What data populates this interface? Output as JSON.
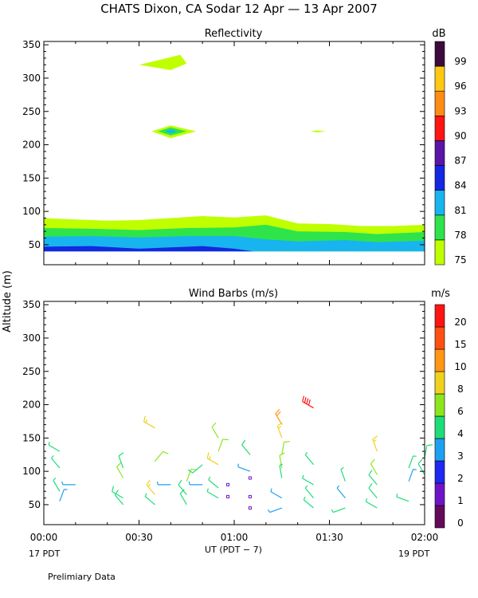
{
  "title": "CHATS Dixon, CA   Sodar   12 Apr — 13 Apr 2007",
  "ylabel": "Altitude  (m)",
  "xlabel": "UT  (PDT − 7)",
  "footer_left_date": "17 PDT",
  "footer_right_date": "19 PDT",
  "footnote": "Prelimiary Data",
  "x_ticks": [
    "00:00",
    "00:30",
    "01:00",
    "01:30",
    "02:00"
  ],
  "y_ticks": [
    "50",
    "100",
    "150",
    "200",
    "250",
    "300",
    "350"
  ],
  "chart_data": [
    {
      "type": "heatmap",
      "title": "Reflectivity",
      "colorbar_unit": "dB",
      "xlim_minutes": [
        0,
        120
      ],
      "ylim": [
        20,
        355
      ],
      "levels": [
        {
          "label": "75",
          "color": "#bfff00"
        },
        {
          "label": "78",
          "color": "#2ee44a"
        },
        {
          "label": "81",
          "color": "#18b4f0"
        },
        {
          "label": "84",
          "color": "#1428e0"
        },
        {
          "label": "87",
          "color": "#5a14a8"
        },
        {
          "label": "90",
          "color": "#ff1414"
        },
        {
          "label": "93",
          "color": "#ff8c14"
        },
        {
          "label": "96",
          "color": "#ffc814"
        },
        {
          "label": "99",
          "color": "#3c0a3c"
        }
      ],
      "contours": [
        {
          "level": "75",
          "points": [
            [
              0,
              40
            ],
            [
              0,
              90
            ],
            [
              10,
              88
            ],
            [
              20,
              86
            ],
            [
              30,
              87
            ],
            [
              40,
              90
            ],
            [
              50,
              93
            ],
            [
              60,
              91
            ],
            [
              70,
              94
            ],
            [
              80,
              82
            ],
            [
              90,
              81
            ],
            [
              100,
              78
            ],
            [
              110,
              78
            ],
            [
              120,
              80
            ],
            [
              120,
              40
            ]
          ]
        },
        {
          "level": "78",
          "points": [
            [
              0,
              40
            ],
            [
              0,
              75
            ],
            [
              15,
              74
            ],
            [
              30,
              72
            ],
            [
              45,
              75
            ],
            [
              60,
              76
            ],
            [
              70,
              80
            ],
            [
              80,
              70
            ],
            [
              95,
              69
            ],
            [
              105,
              66
            ],
            [
              120,
              69
            ],
            [
              120,
              40
            ]
          ]
        },
        {
          "level": "81",
          "points": [
            [
              0,
              40
            ],
            [
              0,
              62
            ],
            [
              15,
              63
            ],
            [
              30,
              61
            ],
            [
              45,
              63
            ],
            [
              60,
              63
            ],
            [
              70,
              58
            ],
            [
              80,
              55
            ],
            [
              95,
              57
            ],
            [
              105,
              54
            ],
            [
              120,
              56
            ],
            [
              120,
              40
            ]
          ]
        },
        {
          "level": "84",
          "points": [
            [
              0,
              40
            ],
            [
              0,
              47
            ],
            [
              15,
              48
            ],
            [
              30,
              44
            ],
            [
              40,
              46
            ],
            [
              50,
              48
            ],
            [
              60,
              44
            ],
            [
              66,
              40
            ]
          ]
        },
        {
          "level": "75",
          "points": [
            [
              30,
              320
            ],
            [
              37,
              328
            ],
            [
              43,
              335
            ],
            [
              45,
              322
            ],
            [
              40,
              312
            ]
          ]
        },
        {
          "level": "75",
          "points": [
            [
              34,
              220
            ],
            [
              40,
              229
            ],
            [
              48,
              220
            ],
            [
              40,
              210
            ]
          ]
        },
        {
          "level": "78",
          "points": [
            [
              36,
              220
            ],
            [
              40,
              226
            ],
            [
              45,
              220
            ],
            [
              40,
              214
            ]
          ]
        },
        {
          "level": "81",
          "points": [
            [
              38,
              220
            ],
            [
              40,
              223
            ],
            [
              42,
              220
            ],
            [
              40,
              217
            ]
          ]
        },
        {
          "level": "75",
          "points": [
            [
              84,
              220
            ],
            [
              86,
              221.5
            ],
            [
              89,
              220
            ],
            [
              86,
              218.5
            ]
          ]
        }
      ]
    },
    {
      "type": "scatter",
      "title": "Wind Barbs (m/s)",
      "colorbar_unit": "m/s",
      "xlim_minutes": [
        0,
        120
      ],
      "ylim": [
        20,
        355
      ],
      "levels": [
        {
          "label": "0",
          "color": "#640a5a"
        },
        {
          "label": "1",
          "color": "#6e14c8"
        },
        {
          "label": "2",
          "color": "#1e28f0"
        },
        {
          "label": "3",
          "color": "#1ea0f0"
        },
        {
          "label": "4",
          "color": "#1edc78"
        },
        {
          "label": "6",
          "color": "#8ce61e"
        },
        {
          "label": "8",
          "color": "#f0d21e"
        },
        {
          "label": "10",
          "color": "#ff9614"
        },
        {
          "label": "15",
          "color": "#ff5014"
        },
        {
          "label": "20",
          "color": "#ff1414"
        }
      ],
      "barbs": [
        {
          "t": 5,
          "z": 130,
          "speed": 4,
          "dir": 300
        },
        {
          "t": 5,
          "z": 105,
          "speed": 4,
          "dir": 320
        },
        {
          "t": 5,
          "z": 70,
          "speed": 4,
          "dir": 330
        },
        {
          "t": 5,
          "z": 55,
          "speed": 3,
          "dir": 20
        },
        {
          "t": 10,
          "z": 80,
          "speed": 3,
          "dir": 270
        },
        {
          "t": 25,
          "z": 105,
          "speed": 5,
          "dir": 340
        },
        {
          "t": 25,
          "z": 90,
          "speed": 7,
          "dir": 330
        },
        {
          "t": 25,
          "z": 60,
          "speed": 5,
          "dir": 300
        },
        {
          "t": 25,
          "z": 50,
          "speed": 5,
          "dir": 320
        },
        {
          "t": 35,
          "z": 165,
          "speed": 9,
          "dir": 300
        },
        {
          "t": 35,
          "z": 115,
          "speed": 6,
          "dir": 40
        },
        {
          "t": 35,
          "z": 65,
          "speed": 8,
          "dir": 320
        },
        {
          "t": 35,
          "z": 50,
          "speed": 4,
          "dir": 310
        },
        {
          "t": 40,
          "z": 80,
          "speed": 3,
          "dir": 270
        },
        {
          "t": 45,
          "z": 85,
          "speed": 6,
          "dir": 20
        },
        {
          "t": 45,
          "z": 65,
          "speed": 5,
          "dir": 320
        },
        {
          "t": 45,
          "z": 50,
          "speed": 5,
          "dir": 330
        },
        {
          "t": 50,
          "z": 110,
          "speed": 5,
          "dir": 230
        },
        {
          "t": 50,
          "z": 80,
          "speed": 3,
          "dir": 270
        },
        {
          "t": 55,
          "z": 150,
          "speed": 6,
          "dir": 330
        },
        {
          "t": 55,
          "z": 130,
          "speed": 6,
          "dir": 20
        },
        {
          "t": 55,
          "z": 110,
          "speed": 8,
          "dir": 300
        },
        {
          "t": 55,
          "z": 75,
          "speed": 4,
          "dir": 310
        },
        {
          "t": 55,
          "z": 60,
          "speed": 4,
          "dir": 300
        },
        {
          "t": 58,
          "z": 80,
          "speed": 1,
          "dir": 0
        },
        {
          "t": 58,
          "z": 62,
          "speed": 1,
          "dir": 0
        },
        {
          "t": 65,
          "z": 125,
          "speed": 5,
          "dir": 320
        },
        {
          "t": 65,
          "z": 100,
          "speed": 3,
          "dir": 290
        },
        {
          "t": 65,
          "z": 90,
          "speed": 1,
          "dir": 200
        },
        {
          "t": 65,
          "z": 62,
          "speed": 1,
          "dir": 0
        },
        {
          "t": 65,
          "z": 45,
          "speed": 1,
          "dir": 0
        },
        {
          "t": 75,
          "z": 170,
          "speed": 12,
          "dir": 330
        },
        {
          "t": 75,
          "z": 150,
          "speed": 8,
          "dir": 340
        },
        {
          "t": 75,
          "z": 125,
          "speed": 6,
          "dir": 10
        },
        {
          "t": 75,
          "z": 105,
          "speed": 6,
          "dir": 350
        },
        {
          "t": 75,
          "z": 90,
          "speed": 4,
          "dir": 350
        },
        {
          "t": 75,
          "z": 60,
          "speed": 3,
          "dir": 300
        },
        {
          "t": 75,
          "z": 45,
          "speed": 3,
          "dir": 250
        },
        {
          "t": 85,
          "z": 195,
          "speed": 20,
          "dir": 300
        },
        {
          "t": 85,
          "z": 110,
          "speed": 4,
          "dir": 320
        },
        {
          "t": 85,
          "z": 80,
          "speed": 4,
          "dir": 300
        },
        {
          "t": 85,
          "z": 60,
          "speed": 4,
          "dir": 320
        },
        {
          "t": 85,
          "z": 45,
          "speed": 4,
          "dir": 310
        },
        {
          "t": 95,
          "z": 85,
          "speed": 4,
          "dir": 340
        },
        {
          "t": 95,
          "z": 60,
          "speed": 3,
          "dir": 320
        },
        {
          "t": 95,
          "z": 45,
          "speed": 4,
          "dir": 250
        },
        {
          "t": 105,
          "z": 130,
          "speed": 9,
          "dir": 340
        },
        {
          "t": 105,
          "z": 95,
          "speed": 7,
          "dir": 330
        },
        {
          "t": 105,
          "z": 80,
          "speed": 5,
          "dir": 320
        },
        {
          "t": 105,
          "z": 60,
          "speed": 5,
          "dir": 320
        },
        {
          "t": 105,
          "z": 45,
          "speed": 4,
          "dir": 300
        },
        {
          "t": 115,
          "z": 105,
          "speed": 4,
          "dir": 20
        },
        {
          "t": 115,
          "z": 85,
          "speed": 3,
          "dir": 20
        },
        {
          "t": 115,
          "z": 55,
          "speed": 4,
          "dir": 290
        },
        {
          "t": 120,
          "z": 120,
          "speed": 5,
          "dir": 10
        },
        {
          "t": 120,
          "z": 95,
          "speed": 5,
          "dir": 330
        }
      ]
    }
  ]
}
